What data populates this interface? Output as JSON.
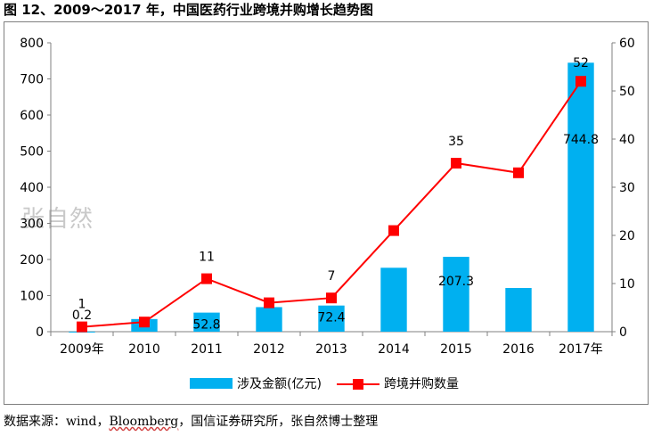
{
  "title": "图 12、2009～2017 年，中国医药行业跨境并购增长趋势图",
  "watermark": "张自然",
  "source": {
    "prefix": "数据来源：wind，",
    "underlined": "Bloomberg",
    "suffix": "，国信证券研究所，张自然博士整理"
  },
  "chart_data": {
    "type": "bar+line",
    "categories": [
      "2009年",
      "2010",
      "2011",
      "2012",
      "2013",
      "2014",
      "2015",
      "2016",
      "2017年"
    ],
    "series": [
      {
        "name": "涉及金额(亿元)",
        "kind": "bar",
        "axis": "left",
        "color": "#00b0f0",
        "values": [
          0.2,
          35,
          52.8,
          68,
          72.4,
          177,
          207.3,
          121,
          744.8
        ],
        "labels": [
          "0.2",
          "",
          "52.8",
          "",
          "72.4",
          "",
          "207.3",
          "",
          "744.8"
        ]
      },
      {
        "name": "跨境并购数量",
        "kind": "line",
        "axis": "right",
        "color": "#ff0000",
        "marker_color": "#ff0000",
        "values": [
          1,
          2,
          11,
          6,
          7,
          21,
          35,
          33,
          52
        ],
        "labels": [
          "1",
          "",
          "11",
          "",
          "7",
          "",
          "35",
          "",
          "52"
        ]
      }
    ],
    "y_left": {
      "min": 0,
      "max": 800,
      "ticks": [
        0,
        100,
        200,
        300,
        400,
        500,
        600,
        700,
        800
      ]
    },
    "y_right": {
      "min": 0,
      "max": 60,
      "ticks": [
        0,
        10,
        20,
        30,
        40,
        50,
        60
      ]
    },
    "grid": false,
    "legend_position": "bottom"
  }
}
